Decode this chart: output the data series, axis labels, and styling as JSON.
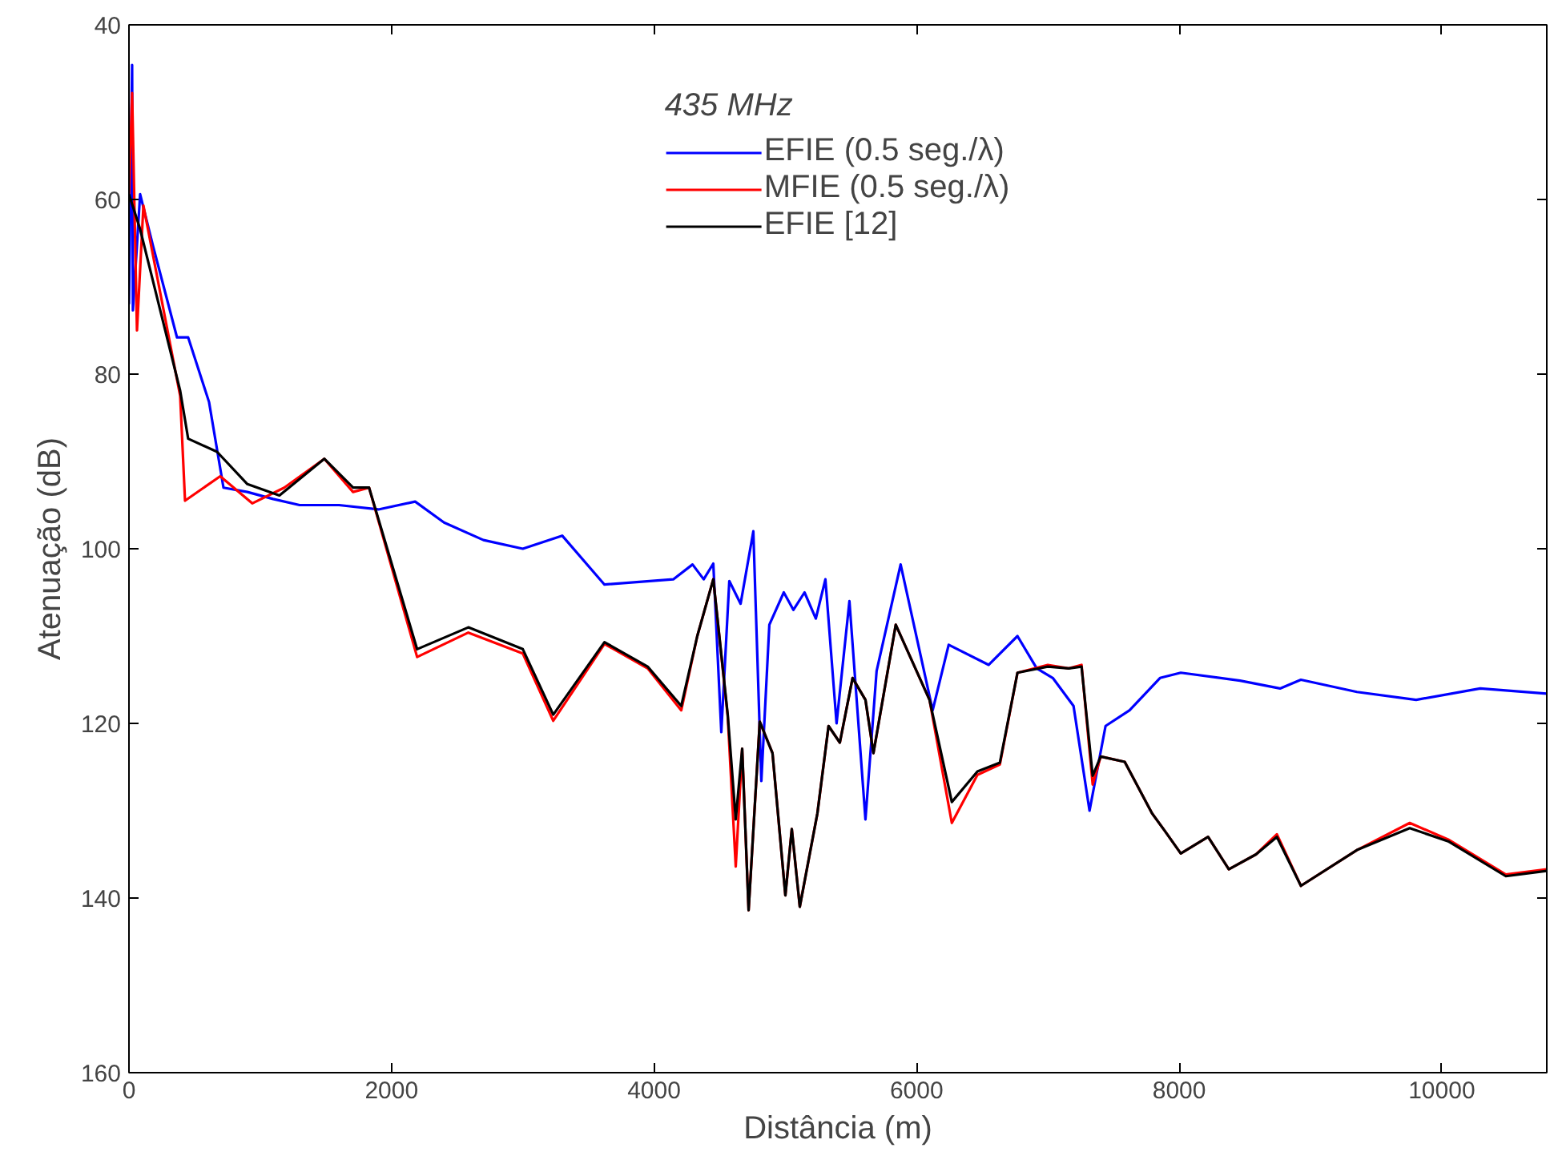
{
  "chart_data": {
    "type": "line",
    "xlabel": "Distância (m)",
    "ylabel": "Atenuação (dB)",
    "legend_title": "435 MHz",
    "xlim": [
      0,
      10800
    ],
    "xticks": [
      0,
      2000,
      4000,
      6000,
      8000,
      10000
    ],
    "ylim": [
      160,
      40
    ],
    "yticks": [
      40,
      60,
      80,
      100,
      120,
      140,
      160
    ],
    "grid": false,
    "legend": "top",
    "line_style": "solid",
    "marker": "none",
    "series": [
      {
        "name": "EFIE (0.5 seg./λ)",
        "color": "#0000ff",
        "x": [
          0,
          24,
          30,
          85,
          183,
          366,
          451,
          610,
          720,
          902,
          1098,
          1300,
          1600,
          1900,
          2180,
          2400,
          2700,
          3000,
          3300,
          3622,
          4146,
          4293,
          4378,
          4451,
          4512,
          4573,
          4659,
          4756,
          4817,
          4878,
          4988,
          5061,
          5146,
          5232,
          5305,
          5390,
          5488,
          5610,
          5695,
          5878,
          6122,
          6244,
          6549,
          6768,
          6915,
          7037,
          7195,
          7317,
          7439,
          7622,
          7854,
          8012,
          8463,
          8768,
          8927,
          9354,
          9805,
          10293,
          10800
        ],
        "values": [
          72,
          44.6,
          72.7,
          59.4,
          65.3,
          75.8,
          75.8,
          83.2,
          93,
          93.5,
          94.3,
          95,
          95,
          95.5,
          94.6,
          97,
          99,
          100,
          98.5,
          104.1,
          103.5,
          101.8,
          103.5,
          101.7,
          121,
          103.7,
          106.3,
          98,
          126.6,
          108.7,
          105,
          107,
          105,
          108,
          103.5,
          120,
          106,
          131,
          114,
          101.8,
          118.5,
          111,
          113.3,
          110,
          113.7,
          114.8,
          118,
          130,
          120.3,
          118.5,
          114.8,
          114.2,
          115.1,
          116,
          115,
          116.4,
          117.3,
          116,
          116.6
        ]
      },
      {
        "name": "MFIE (0.5 seg./λ)",
        "color": "#ff0000",
        "x": [
          0,
          24,
          61,
          110,
          390,
          427,
          695,
          939,
          1183,
          1488,
          1707,
          1829,
          2195,
          2585,
          3000,
          3232,
          3622,
          3951,
          4207,
          4329,
          4451,
          4561,
          4622,
          4671,
          4720,
          4805,
          4902,
          5000,
          5049,
          5110,
          5244,
          5329,
          5415,
          5512,
          5610,
          5671,
          5841,
          6098,
          6268,
          6463,
          6634,
          6768,
          6999,
          7159,
          7256,
          7341,
          7402,
          7585,
          7793,
          7890,
          8012,
          8220,
          8378,
          8585,
          8744,
          8927,
          9354,
          9756,
          10049,
          10488,
          10800
        ],
        "values": [
          60,
          47.8,
          75,
          60.7,
          82.5,
          94.5,
          91.7,
          94.8,
          93,
          89.7,
          93.5,
          93,
          112.4,
          109.6,
          112,
          119.7,
          110.9,
          113.7,
          118.5,
          110,
          103.5,
          119.2,
          136.4,
          122.9,
          141.4,
          119.8,
          123.4,
          139.7,
          132.1,
          141,
          130.3,
          120.3,
          122.2,
          114.8,
          117.3,
          123.4,
          108.7,
          117.3,
          131.4,
          125.9,
          124.7,
          114.2,
          113.3,
          113.7,
          113.3,
          127,
          123.8,
          124.4,
          130.3,
          132.3,
          134.9,
          133,
          136.7,
          135,
          132.7,
          138.6,
          134.5,
          131.4,
          133.3,
          137.3,
          136.7
        ]
      },
      {
        "name": "EFIE [12]",
        "color": "#000000",
        "x": [
          0,
          85,
          390,
          451,
          671,
          902,
          1146,
          1488,
          1707,
          1829,
          2195,
          2585,
          3000,
          3232,
          3622,
          3951,
          4207,
          4329,
          4451,
          4561,
          4622,
          4671,
          4720,
          4805,
          4902,
          5000,
          5049,
          5110,
          5244,
          5329,
          5415,
          5512,
          5610,
          5671,
          5841,
          6098,
          6268,
          6463,
          6634,
          6768,
          6999,
          7159,
          7256,
          7341,
          7402,
          7585,
          7793,
          7890,
          8012,
          8220,
          8378,
          8585,
          8744,
          8927,
          9354,
          9756,
          10049,
          10488,
          10800
        ],
        "values": [
          59.4,
          63.4,
          81.9,
          87.4,
          88.9,
          92.6,
          93.9,
          89.7,
          93,
          93,
          111.5,
          109,
          111.5,
          119,
          110.7,
          113.5,
          118,
          110,
          103.5,
          119,
          131,
          122.9,
          141.4,
          119.8,
          123.4,
          139.7,
          132.1,
          141,
          130.3,
          120.3,
          122.2,
          114.8,
          117.3,
          123.4,
          108.7,
          117.3,
          129,
          125.5,
          124.5,
          114.2,
          113.5,
          113.7,
          113.5,
          126,
          123.8,
          124.4,
          130.3,
          132.3,
          134.9,
          133,
          136.7,
          135,
          133,
          138.6,
          134.5,
          132,
          133.5,
          137.5,
          136.9
        ]
      }
    ]
  }
}
